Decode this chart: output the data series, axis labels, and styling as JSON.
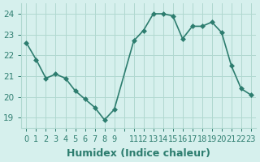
{
  "x": [
    0,
    1,
    2,
    3,
    4,
    5,
    6,
    7,
    8,
    9,
    11,
    12,
    13,
    14,
    15,
    16,
    17,
    18,
    19,
    20,
    21,
    22,
    23
  ],
  "y": [
    22.6,
    21.8,
    20.9,
    21.1,
    20.9,
    20.3,
    19.9,
    19.5,
    18.9,
    19.4,
    22.7,
    23.2,
    24.0,
    24.0,
    23.9,
    22.8,
    23.4,
    23.4,
    23.6,
    23.1,
    21.5,
    20.4,
    20.1
  ],
  "line_color": "#2d7d6f",
  "marker_color": "#2d7d6f",
  "bg_color": "#d6f0ed",
  "grid_color": "#b0d8d0",
  "xlabel": "Humidex (Indice chaleur)",
  "ylim": [
    18.5,
    24.5
  ],
  "yticks": [
    19,
    20,
    21,
    22,
    23,
    24
  ],
  "all_xticks": [
    0,
    1,
    2,
    3,
    4,
    5,
    6,
    7,
    8,
    9,
    10,
    11,
    12,
    13,
    14,
    15,
    16,
    17,
    18,
    19,
    20,
    21,
    22,
    23
  ],
  "xtick_labels": [
    "0",
    "1",
    "2",
    "3",
    "4",
    "5",
    "6",
    "7",
    "8",
    "9",
    "",
    "11",
    "12",
    "13",
    "14",
    "15",
    "16",
    "17",
    "18",
    "19",
    "20",
    "21",
    "22",
    "23"
  ],
  "xlabel_fontsize": 9,
  "tick_fontsize": 7.5,
  "line_width": 1.2,
  "marker_size": 3
}
